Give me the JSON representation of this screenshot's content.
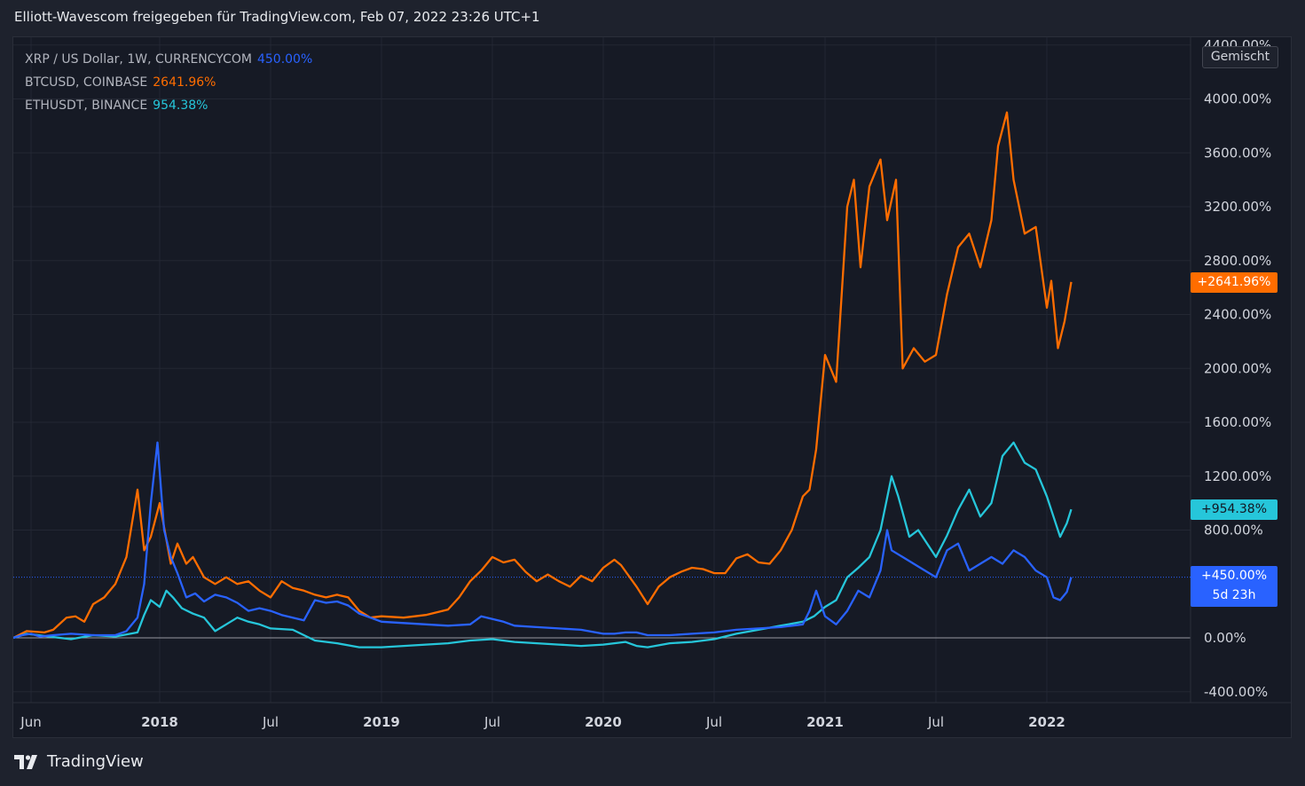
{
  "header": {
    "title": "Elliott-Wavescom freigegeben für TradingView.com, Feb 07, 2022 23:26 UTC+1"
  },
  "legend": [
    {
      "name": "XRP / US Dollar, 1W, CURRENCYCOM",
      "value": "450.00%",
      "color": "#2962ff"
    },
    {
      "name": "BTCUSD, COINBASE",
      "value": "2641.96%",
      "color": "#ff6d00"
    },
    {
      "name": "ETHUSDT, BINANCE",
      "value": "954.38%",
      "color": "#26c6da"
    }
  ],
  "scale_mode": "Gemischt",
  "price_tags": {
    "btc": "+2641.96%",
    "eth": "+954.38%",
    "xrp": "+450.00%",
    "xrp_countdown": "5d 23h"
  },
  "footer": {
    "brand": "TradingView"
  },
  "colors": {
    "background": "#161a25",
    "xrp": "#2962ff",
    "btc": "#ff6d00",
    "eth": "#26c6da",
    "grid": "#262b37"
  },
  "chart_data": {
    "type": "line",
    "y_unit": "%",
    "ylim": [
      -600,
      4400
    ],
    "y_ticks": [
      "4400.00%",
      "4000.00%",
      "3600.00%",
      "3200.00%",
      "2800.00%",
      "2400.00%",
      "2000.00%",
      "1600.00%",
      "1200.00%",
      "800.00%",
      "0.00%",
      "-400.00%"
    ],
    "y_tick_values": [
      4400,
      4000,
      3600,
      3200,
      2800,
      2400,
      2000,
      1600,
      1200,
      800,
      0,
      -400
    ],
    "x_tick_labels": [
      {
        "label": "Jun",
        "t": 2017.42,
        "bold": false
      },
      {
        "label": "2018",
        "t": 2018.0,
        "bold": true
      },
      {
        "label": "Jul",
        "t": 2018.5,
        "bold": false
      },
      {
        "label": "2019",
        "t": 2019.0,
        "bold": true
      },
      {
        "label": "Jul",
        "t": 2019.5,
        "bold": false
      },
      {
        "label": "2020",
        "t": 2020.0,
        "bold": true
      },
      {
        "label": "Jul",
        "t": 2020.5,
        "bold": false
      },
      {
        "label": "2021",
        "t": 2021.0,
        "bold": true
      },
      {
        "label": "Jul",
        "t": 2021.5,
        "bold": false
      },
      {
        "label": "2022",
        "t": 2022.0,
        "bold": true
      }
    ],
    "xlim": [
      2017.34,
      2022.5
    ],
    "grid": true,
    "legend_position": "top-left",
    "series": [
      {
        "name": "BTCUSD, COINBASE",
        "color": "#ff6d00",
        "points": [
          [
            2017.34,
            0
          ],
          [
            2017.4,
            50
          ],
          [
            2017.48,
            40
          ],
          [
            2017.52,
            60
          ],
          [
            2017.58,
            150
          ],
          [
            2017.62,
            160
          ],
          [
            2017.66,
            120
          ],
          [
            2017.7,
            250
          ],
          [
            2017.75,
            300
          ],
          [
            2017.8,
            400
          ],
          [
            2017.85,
            600
          ],
          [
            2017.9,
            1100
          ],
          [
            2017.93,
            650
          ],
          [
            2017.96,
            750
          ],
          [
            2018.0,
            1000
          ],
          [
            2018.05,
            550
          ],
          [
            2018.08,
            700
          ],
          [
            2018.12,
            550
          ],
          [
            2018.15,
            600
          ],
          [
            2018.2,
            450
          ],
          [
            2018.25,
            400
          ],
          [
            2018.3,
            450
          ],
          [
            2018.35,
            400
          ],
          [
            2018.4,
            420
          ],
          [
            2018.45,
            350
          ],
          [
            2018.5,
            300
          ],
          [
            2018.55,
            420
          ],
          [
            2018.6,
            370
          ],
          [
            2018.65,
            350
          ],
          [
            2018.7,
            320
          ],
          [
            2018.75,
            300
          ],
          [
            2018.8,
            320
          ],
          [
            2018.85,
            300
          ],
          [
            2018.9,
            200
          ],
          [
            2018.95,
            150
          ],
          [
            2019.0,
            160
          ],
          [
            2019.1,
            150
          ],
          [
            2019.2,
            170
          ],
          [
            2019.3,
            210
          ],
          [
            2019.35,
            300
          ],
          [
            2019.4,
            420
          ],
          [
            2019.45,
            500
          ],
          [
            2019.5,
            600
          ],
          [
            2019.55,
            560
          ],
          [
            2019.6,
            580
          ],
          [
            2019.65,
            490
          ],
          [
            2019.7,
            420
          ],
          [
            2019.75,
            470
          ],
          [
            2019.8,
            420
          ],
          [
            2019.85,
            380
          ],
          [
            2019.9,
            460
          ],
          [
            2019.95,
            420
          ],
          [
            2020.0,
            520
          ],
          [
            2020.05,
            580
          ],
          [
            2020.08,
            540
          ],
          [
            2020.15,
            380
          ],
          [
            2020.2,
            250
          ],
          [
            2020.25,
            380
          ],
          [
            2020.3,
            450
          ],
          [
            2020.35,
            490
          ],
          [
            2020.4,
            520
          ],
          [
            2020.45,
            510
          ],
          [
            2020.5,
            480
          ],
          [
            2020.55,
            480
          ],
          [
            2020.6,
            590
          ],
          [
            2020.65,
            620
          ],
          [
            2020.7,
            560
          ],
          [
            2020.75,
            550
          ],
          [
            2020.8,
            650
          ],
          [
            2020.85,
            800
          ],
          [
            2020.9,
            1050
          ],
          [
            2020.93,
            1100
          ],
          [
            2020.96,
            1400
          ],
          [
            2021.0,
            2100
          ],
          [
            2021.05,
            1900
          ],
          [
            2021.1,
            3200
          ],
          [
            2021.13,
            3400
          ],
          [
            2021.16,
            2750
          ],
          [
            2021.2,
            3350
          ],
          [
            2021.25,
            3550
          ],
          [
            2021.28,
            3100
          ],
          [
            2021.32,
            3400
          ],
          [
            2021.35,
            2000
          ],
          [
            2021.4,
            2150
          ],
          [
            2021.45,
            2050
          ],
          [
            2021.5,
            2100
          ],
          [
            2021.55,
            2550
          ],
          [
            2021.6,
            2900
          ],
          [
            2021.65,
            3000
          ],
          [
            2021.7,
            2750
          ],
          [
            2021.75,
            3100
          ],
          [
            2021.78,
            3650
          ],
          [
            2021.82,
            3900
          ],
          [
            2021.85,
            3400
          ],
          [
            2021.9,
            3000
          ],
          [
            2021.95,
            3050
          ],
          [
            2022.0,
            2450
          ],
          [
            2022.02,
            2650
          ],
          [
            2022.05,
            2150
          ],
          [
            2022.08,
            2350
          ],
          [
            2022.11,
            2641.96
          ]
        ]
      },
      {
        "name": "ETHUSDT, BINANCE",
        "color": "#26c6da",
        "points": [
          [
            2017.34,
            0
          ],
          [
            2017.4,
            30
          ],
          [
            2017.5,
            10
          ],
          [
            2017.6,
            -10
          ],
          [
            2017.7,
            20
          ],
          [
            2017.8,
            10
          ],
          [
            2017.9,
            40
          ],
          [
            2017.93,
            170
          ],
          [
            2017.96,
            280
          ],
          [
            2018.0,
            230
          ],
          [
            2018.03,
            350
          ],
          [
            2018.06,
            300
          ],
          [
            2018.1,
            220
          ],
          [
            2018.15,
            180
          ],
          [
            2018.2,
            150
          ],
          [
            2018.25,
            50
          ],
          [
            2018.3,
            100
          ],
          [
            2018.35,
            150
          ],
          [
            2018.4,
            120
          ],
          [
            2018.45,
            100
          ],
          [
            2018.5,
            70
          ],
          [
            2018.6,
            60
          ],
          [
            2018.7,
            -20
          ],
          [
            2018.8,
            -40
          ],
          [
            2018.9,
            -70
          ],
          [
            2019.0,
            -70
          ],
          [
            2019.1,
            -60
          ],
          [
            2019.2,
            -50
          ],
          [
            2019.3,
            -40
          ],
          [
            2019.4,
            -20
          ],
          [
            2019.5,
            -10
          ],
          [
            2019.6,
            -30
          ],
          [
            2019.7,
            -40
          ],
          [
            2019.8,
            -50
          ],
          [
            2019.9,
            -60
          ],
          [
            2020.0,
            -50
          ],
          [
            2020.1,
            -30
          ],
          [
            2020.15,
            -60
          ],
          [
            2020.2,
            -70
          ],
          [
            2020.3,
            -40
          ],
          [
            2020.4,
            -30
          ],
          [
            2020.5,
            -10
          ],
          [
            2020.6,
            30
          ],
          [
            2020.7,
            60
          ],
          [
            2020.8,
            90
          ],
          [
            2020.9,
            120
          ],
          [
            2020.95,
            160
          ],
          [
            2021.0,
            230
          ],
          [
            2021.05,
            280
          ],
          [
            2021.1,
            450
          ],
          [
            2021.15,
            520
          ],
          [
            2021.2,
            600
          ],
          [
            2021.25,
            800
          ],
          [
            2021.3,
            1200
          ],
          [
            2021.33,
            1050
          ],
          [
            2021.38,
            750
          ],
          [
            2021.42,
            800
          ],
          [
            2021.5,
            600
          ],
          [
            2021.55,
            760
          ],
          [
            2021.6,
            950
          ],
          [
            2021.65,
            1100
          ],
          [
            2021.7,
            900
          ],
          [
            2021.75,
            1000
          ],
          [
            2021.8,
            1350
          ],
          [
            2021.85,
            1450
          ],
          [
            2021.9,
            1300
          ],
          [
            2021.95,
            1250
          ],
          [
            2022.0,
            1050
          ],
          [
            2022.03,
            900
          ],
          [
            2022.06,
            750
          ],
          [
            2022.09,
            850
          ],
          [
            2022.11,
            954.38
          ]
        ]
      },
      {
        "name": "XRP / US Dollar, 1W, CURRENCYCOM",
        "color": "#2962ff",
        "points": [
          [
            2017.34,
            0
          ],
          [
            2017.38,
            20
          ],
          [
            2017.42,
            30
          ],
          [
            2017.46,
            10
          ],
          [
            2017.52,
            20
          ],
          [
            2017.6,
            30
          ],
          [
            2017.7,
            20
          ],
          [
            2017.8,
            20
          ],
          [
            2017.85,
            50
          ],
          [
            2017.9,
            150
          ],
          [
            2017.93,
            400
          ],
          [
            2017.96,
            1000
          ],
          [
            2017.99,
            1450
          ],
          [
            2018.02,
            800
          ],
          [
            2018.05,
            600
          ],
          [
            2018.08,
            480
          ],
          [
            2018.12,
            300
          ],
          [
            2018.16,
            330
          ],
          [
            2018.2,
            270
          ],
          [
            2018.25,
            320
          ],
          [
            2018.3,
            300
          ],
          [
            2018.35,
            260
          ],
          [
            2018.4,
            200
          ],
          [
            2018.45,
            220
          ],
          [
            2018.5,
            200
          ],
          [
            2018.55,
            170
          ],
          [
            2018.6,
            150
          ],
          [
            2018.65,
            130
          ],
          [
            2018.7,
            280
          ],
          [
            2018.75,
            260
          ],
          [
            2018.8,
            270
          ],
          [
            2018.85,
            240
          ],
          [
            2018.9,
            180
          ],
          [
            2018.95,
            150
          ],
          [
            2019.0,
            120
          ],
          [
            2019.1,
            110
          ],
          [
            2019.2,
            100
          ],
          [
            2019.3,
            90
          ],
          [
            2019.4,
            100
          ],
          [
            2019.45,
            160
          ],
          [
            2019.5,
            140
          ],
          [
            2019.55,
            120
          ],
          [
            2019.6,
            90
          ],
          [
            2019.7,
            80
          ],
          [
            2019.8,
            70
          ],
          [
            2019.9,
            60
          ],
          [
            2020.0,
            30
          ],
          [
            2020.05,
            30
          ],
          [
            2020.1,
            40
          ],
          [
            2020.15,
            40
          ],
          [
            2020.2,
            20
          ],
          [
            2020.3,
            20
          ],
          [
            2020.4,
            30
          ],
          [
            2020.5,
            40
          ],
          [
            2020.6,
            60
          ],
          [
            2020.7,
            70
          ],
          [
            2020.8,
            80
          ],
          [
            2020.85,
            90
          ],
          [
            2020.9,
            100
          ],
          [
            2020.93,
            200
          ],
          [
            2020.96,
            350
          ],
          [
            2021.0,
            160
          ],
          [
            2021.05,
            100
          ],
          [
            2021.1,
            200
          ],
          [
            2021.15,
            350
          ],
          [
            2021.2,
            300
          ],
          [
            2021.25,
            500
          ],
          [
            2021.28,
            800
          ],
          [
            2021.3,
            650
          ],
          [
            2021.35,
            600
          ],
          [
            2021.4,
            550
          ],
          [
            2021.45,
            500
          ],
          [
            2021.5,
            450
          ],
          [
            2021.55,
            650
          ],
          [
            2021.6,
            700
          ],
          [
            2021.65,
            500
          ],
          [
            2021.7,
            550
          ],
          [
            2021.75,
            600
          ],
          [
            2021.8,
            550
          ],
          [
            2021.85,
            650
          ],
          [
            2021.9,
            600
          ],
          [
            2021.95,
            500
          ],
          [
            2022.0,
            450
          ],
          [
            2022.03,
            300
          ],
          [
            2022.06,
            280
          ],
          [
            2022.09,
            340
          ],
          [
            2022.11,
            450
          ]
        ]
      }
    ]
  }
}
